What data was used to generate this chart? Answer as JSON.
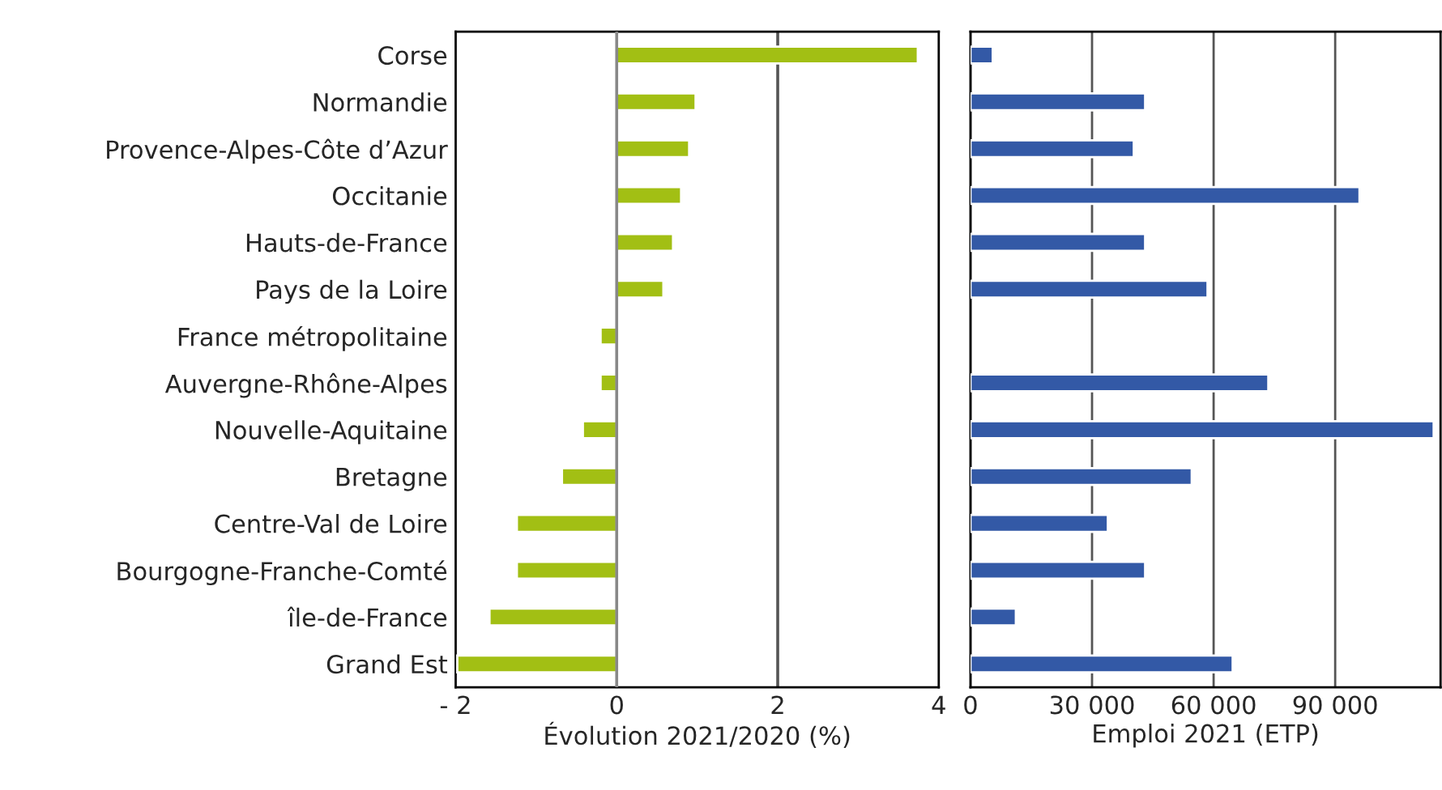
{
  "chart_data": [
    {
      "type": "bar",
      "orientation": "horizontal",
      "xlabel": "Évolution 2021/2020 (%)",
      "categories": [
        "Corse",
        "Normandie",
        "Provence-Alpes-Côte d’Azur",
        "Occitanie",
        "Hauts-de-France",
        "Pays de la Loire",
        "France métropolitaine",
        "Auvergne-Rhône-Alpes",
        "Nouvelle-Aquitaine",
        "Bretagne",
        "Centre-Val de Loire",
        "Bourgogne-Franche-Comté",
        "île-de-France",
        "Grand Est"
      ],
      "values": [
        3.74,
        0.98,
        0.9,
        0.8,
        0.7,
        0.58,
        -0.2,
        -0.2,
        -0.42,
        -0.68,
        -1.24,
        -1.24,
        -1.58,
        -1.98
      ],
      "color": "#a2bf14",
      "xlim": [
        -2,
        4
      ],
      "xticks": [
        {
          "value": -2,
          "label": "- 2"
        },
        0,
        2,
        4
      ],
      "ref_lines": [
        {
          "axis": "x",
          "value": 0,
          "color": "#888888"
        },
        {
          "axis": "x",
          "value": 2,
          "color": "#555555"
        }
      ]
    },
    {
      "type": "bar",
      "orientation": "horizontal",
      "xlabel": "Emploi 2021 (ETP)",
      "categories": [
        null,
        null,
        null,
        null,
        null,
        null,
        null,
        null,
        null,
        null,
        null,
        null,
        null,
        null
      ],
      "values": [
        5500,
        43100,
        40300,
        96000,
        43100,
        58500,
        null,
        73500,
        114300,
        54600,
        33900,
        43100,
        11200,
        64700
      ],
      "color": "#3359a6",
      "xlim": [
        0,
        116000
      ],
      "xticks": [
        0,
        {
          "value": 30000,
          "label": "30 000"
        },
        {
          "value": 60000,
          "label": "60 000"
        },
        {
          "value": 90000,
          "label": "90 000"
        }
      ],
      "grid": "x",
      "tick_labels": "x"
    }
  ]
}
